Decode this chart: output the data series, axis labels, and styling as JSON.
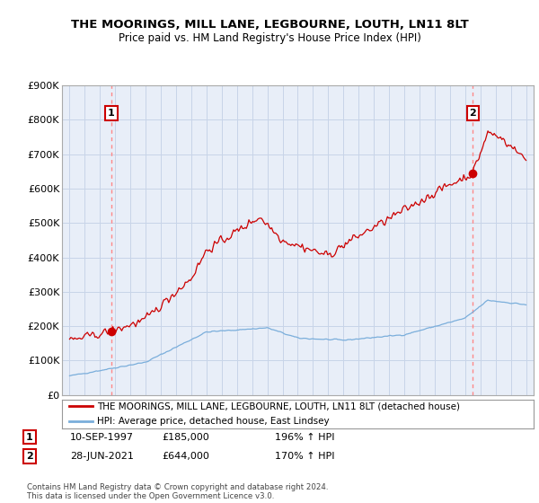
{
  "title": "THE MOORINGS, MILL LANE, LEGBOURNE, LOUTH, LN11 8LT",
  "subtitle": "Price paid vs. HM Land Registry's House Price Index (HPI)",
  "ylim": [
    0,
    900000
  ],
  "yticks": [
    0,
    100000,
    200000,
    300000,
    400000,
    500000,
    600000,
    700000,
    800000,
    900000
  ],
  "ytick_labels": [
    "£0",
    "£100K",
    "£200K",
    "£300K",
    "£400K",
    "£500K",
    "£600K",
    "£700K",
    "£800K",
    "£900K"
  ],
  "xlim_start": 1994.5,
  "xlim_end": 2025.5,
  "sale1_x": 1997.75,
  "sale1_y": 185000,
  "sale1_label": "1",
  "sale2_x": 2021.5,
  "sale2_y": 644000,
  "sale2_label": "2",
  "property_color": "#cc0000",
  "hpi_color": "#7aaedb",
  "annotation_color": "#cc0000",
  "dashed_color": "#ff8888",
  "plot_bg_color": "#e8eef8",
  "legend_property": "THE MOORINGS, MILL LANE, LEGBOURNE, LOUTH, LN11 8LT (detached house)",
  "legend_hpi": "HPI: Average price, detached house, East Lindsey",
  "table_rows": [
    [
      "1",
      "10-SEP-1997",
      "£185,000",
      "196% ↑ HPI"
    ],
    [
      "2",
      "28-JUN-2021",
      "£644,000",
      "170% ↑ HPI"
    ]
  ],
  "footer": "Contains HM Land Registry data © Crown copyright and database right 2024.\nThis data is licensed under the Open Government Licence v3.0.",
  "background_color": "#ffffff",
  "grid_color": "#c8d4e8"
}
